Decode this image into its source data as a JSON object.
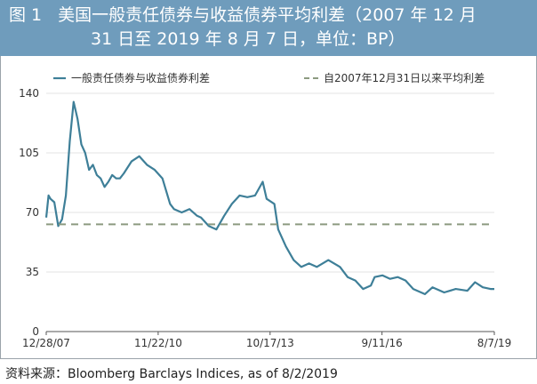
{
  "header": {
    "figure_label": "图 1",
    "title_line1": "美国一般责任债券与收益债券平均利差（2007 年 12 月",
    "title_line2": "31 日至 2019 年 8 月 7 日，单位：BP）"
  },
  "source": "资料来源：Bloomberg Barclays Indices, as of 8/2/2019",
  "colors": {
    "series": "#3e7f98",
    "average": "#8c9a80",
    "header_bg": "#6f9cbc",
    "grid": "#e3e3e3"
  },
  "chart_data": {
    "type": "line",
    "title": "美国一般责任债券与收益债券平均利差（2007 年 12 月31 日至 2019 年 8 月 7 日，单位：BP）",
    "xlabel": "",
    "ylabel": "",
    "x_tick_labels": [
      "12/28/07",
      "11/22/10",
      "10/17/13",
      "9/11/16",
      "8/7/19"
    ],
    "x_tick_values": [
      2007.99,
      2010.89,
      2013.79,
      2016.69,
      2019.6
    ],
    "xlim": [
      2007.99,
      2019.6
    ],
    "y_ticks": [
      0,
      35,
      70,
      105,
      140
    ],
    "ylim": [
      0,
      140
    ],
    "grid": "horizontal",
    "legend_position": "top",
    "series": [
      {
        "name": "一般责任债券与收益债券利差",
        "style": "solid",
        "x": [
          2007.99,
          2008.05,
          2008.1,
          2008.2,
          2008.3,
          2008.4,
          2008.5,
          2008.6,
          2008.7,
          2008.8,
          2008.9,
          2009.0,
          2009.1,
          2009.2,
          2009.3,
          2009.4,
          2009.5,
          2009.6,
          2009.7,
          2009.8,
          2009.9,
          2010.0,
          2010.2,
          2010.4,
          2010.6,
          2010.8,
          2011.0,
          2011.2,
          2011.3,
          2011.5,
          2011.7,
          2011.9,
          2012.0,
          2012.2,
          2012.4,
          2012.6,
          2012.8,
          2013.0,
          2013.2,
          2013.4,
          2013.6,
          2013.7,
          2013.9,
          2014.0,
          2014.2,
          2014.4,
          2014.6,
          2014.8,
          2015.0,
          2015.3,
          2015.6,
          2015.8,
          2016.0,
          2016.2,
          2016.4,
          2016.5,
          2016.7,
          2016.9,
          2017.1,
          2017.3,
          2017.5,
          2017.8,
          2018.0,
          2018.3,
          2018.6,
          2018.9,
          2019.1,
          2019.3,
          2019.5,
          2019.6
        ],
        "y": [
          67,
          80,
          78,
          76,
          62,
          66,
          80,
          112,
          135,
          125,
          110,
          105,
          95,
          98,
          92,
          90,
          85,
          88,
          92,
          90,
          90,
          93,
          100,
          103,
          98,
          95,
          90,
          75,
          72,
          70,
          72,
          68,
          67,
          62,
          60,
          68,
          75,
          80,
          79,
          80,
          88,
          78,
          75,
          60,
          50,
          42,
          38,
          40,
          38,
          42,
          38,
          32,
          30,
          25,
          27,
          32,
          33,
          31,
          32,
          30,
          25,
          22,
          26,
          23,
          25,
          24,
          29,
          26,
          25,
          25
        ]
      },
      {
        "name": "自2007年12月31日以来平均利差",
        "style": "dashed",
        "x": [
          2007.99,
          2019.6
        ],
        "y": [
          63,
          63
        ]
      }
    ]
  }
}
